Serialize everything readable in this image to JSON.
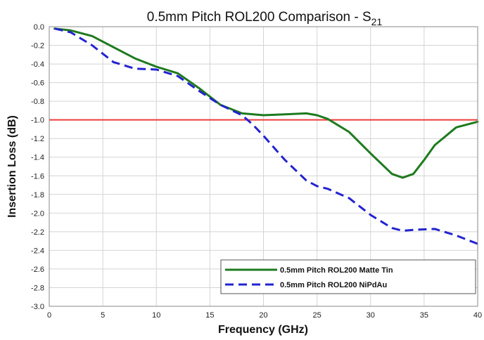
{
  "chart_data": {
    "type": "line",
    "title": "0.5mm Pitch ROL200 Comparison - S",
    "title_subscript": "21",
    "xlabel": "Frequency (GHz)",
    "ylabel": "Insertion Loss (dB)",
    "xlim": [
      0,
      40
    ],
    "ylim": [
      -3.0,
      0.0
    ],
    "xticks": [
      "0",
      "5",
      "10",
      "15",
      "20",
      "25",
      "30",
      "35",
      "40"
    ],
    "yticks": [
      "0.0",
      "-0.2",
      "-0.4",
      "-0.6",
      "-0.8",
      "-1.0",
      "-1.2",
      "-1.4",
      "-1.6",
      "-1.8",
      "-2.0",
      "-2.2",
      "-2.4",
      "-2.6",
      "-2.8",
      "-3.0"
    ],
    "grid": true,
    "legend_position": "bottom-right",
    "reference_line": {
      "y": -1.0,
      "color": "#ee3b3b"
    },
    "series": [
      {
        "name": "0.5mm Pitch ROL200 Matte Tin",
        "color": "#1e7a1e",
        "style": "solid",
        "x": [
          0.5,
          2,
          4,
          6,
          8,
          10,
          12,
          14,
          16,
          18,
          20,
          22,
          24,
          25,
          26,
          28,
          30,
          32,
          33,
          34,
          35,
          36,
          38,
          40
        ],
        "y": [
          -0.02,
          -0.04,
          -0.1,
          -0.22,
          -0.34,
          -0.43,
          -0.5,
          -0.66,
          -0.84,
          -0.93,
          -0.95,
          -0.94,
          -0.93,
          -0.95,
          -0.99,
          -1.13,
          -1.36,
          -1.58,
          -1.62,
          -1.58,
          -1.43,
          -1.27,
          -1.08,
          -1.02
        ]
      },
      {
        "name": "0.5mm Pitch ROL200 NiPdAu",
        "color": "#2323d0",
        "style": "dashed",
        "x": [
          0.5,
          2,
          4,
          6,
          8,
          10,
          12,
          14,
          16,
          18,
          19,
          20,
          22,
          24,
          25,
          26,
          28,
          30,
          32,
          33,
          34,
          36,
          38,
          40
        ],
        "y": [
          -0.02,
          -0.06,
          -0.2,
          -0.38,
          -0.45,
          -0.46,
          -0.53,
          -0.69,
          -0.84,
          -0.95,
          -1.05,
          -1.17,
          -1.43,
          -1.65,
          -1.71,
          -1.74,
          -1.84,
          -2.02,
          -2.16,
          -2.19,
          -2.18,
          -2.17,
          -2.24,
          -2.33
        ]
      }
    ]
  }
}
